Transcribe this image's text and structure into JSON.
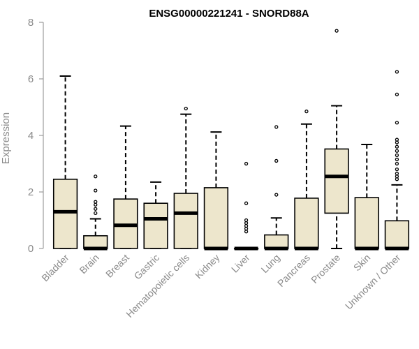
{
  "chart_data": {
    "type": "boxplot",
    "title": "ENSG00000221241 - SNORD88A",
    "xlabel": "",
    "ylabel": "Expression",
    "ylim": [
      0,
      8
    ],
    "yticks": [
      0,
      2,
      4,
      6,
      8
    ],
    "box_color": "#ede6cc",
    "categories": [
      "Bladder",
      "Brain",
      "Breast",
      "Gastric",
      "Hematopoietic cells",
      "Kidney",
      "Liver",
      "Lung",
      "Pancreas",
      "Prostate",
      "Skin",
      "Unknown / Other"
    ],
    "boxes": [
      {
        "category": "Bladder",
        "min": 0.0,
        "q1": 0.0,
        "median": 1.3,
        "q3": 2.45,
        "max": 6.1,
        "outliers": []
      },
      {
        "category": "Brain",
        "min": 0.0,
        "q1": 0.0,
        "median": 0.0,
        "q3": 0.45,
        "max": 1.05,
        "outliers": [
          1.25,
          1.4,
          1.55,
          1.65,
          2.05,
          2.55
        ]
      },
      {
        "category": "Breast",
        "min": 0.0,
        "q1": 0.0,
        "median": 0.82,
        "q3": 1.75,
        "max": 4.33,
        "outliers": []
      },
      {
        "category": "Gastric",
        "min": 0.0,
        "q1": 0.0,
        "median": 1.05,
        "q3": 1.6,
        "max": 2.35,
        "outliers": []
      },
      {
        "category": "Hematopoietic cells",
        "min": 0.0,
        "q1": 0.0,
        "median": 1.25,
        "q3": 1.95,
        "max": 4.75,
        "outliers": [
          4.95
        ]
      },
      {
        "category": "Kidney",
        "min": 0.0,
        "q1": 0.0,
        "median": 0.0,
        "q3": 2.15,
        "max": 4.12,
        "outliers": []
      },
      {
        "category": "Liver",
        "min": 0.0,
        "q1": 0.0,
        "median": 0.0,
        "q3": 0.0,
        "max": 0.0,
        "outliers": [
          0.6,
          0.7,
          0.8,
          0.9,
          1.0,
          1.6,
          3.0
        ]
      },
      {
        "category": "Lung",
        "min": 0.0,
        "q1": 0.0,
        "median": 0.0,
        "q3": 0.48,
        "max": 1.08,
        "outliers": [
          1.9,
          3.1,
          4.3
        ]
      },
      {
        "category": "Pancreas",
        "min": 0.0,
        "q1": 0.0,
        "median": 0.0,
        "q3": 1.78,
        "max": 4.4,
        "outliers": [
          4.85
        ]
      },
      {
        "category": "Prostate",
        "min": 0.0,
        "q1": 1.25,
        "median": 2.55,
        "q3": 3.52,
        "max": 5.05,
        "outliers": [
          7.7
        ]
      },
      {
        "category": "Skin",
        "min": 0.0,
        "q1": 0.0,
        "median": 0.0,
        "q3": 1.8,
        "max": 3.68,
        "outliers": []
      },
      {
        "category": "Unknown / Other",
        "min": 0.0,
        "q1": 0.0,
        "median": 0.0,
        "q3": 0.98,
        "max": 2.25,
        "outliers": [
          2.45,
          2.55,
          2.65,
          2.8,
          3.0,
          3.15,
          3.3,
          3.45,
          3.6,
          3.75,
          3.85,
          4.45,
          5.45,
          6.25
        ]
      }
    ]
  }
}
